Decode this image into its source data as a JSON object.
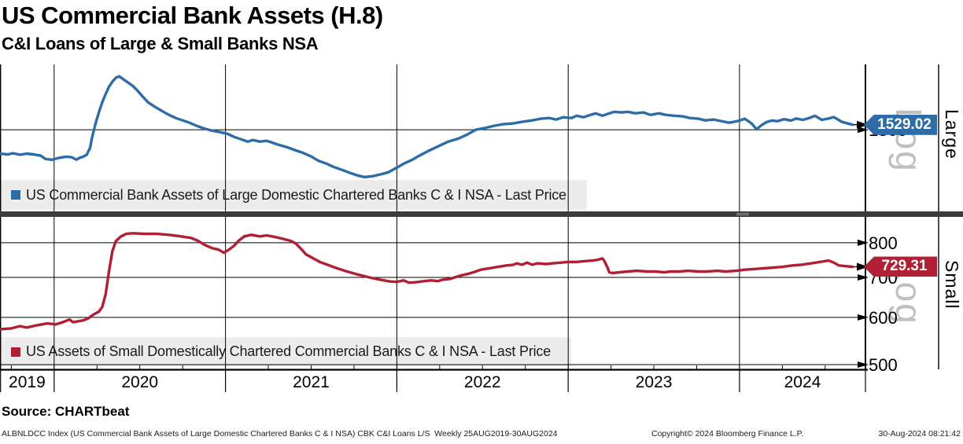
{
  "header": {
    "title": "US Commercial Bank Assets (H.8)",
    "subtitle": "C&I Loans of Large & Small Banks NSA"
  },
  "source_line": "Source: CHARTbeat",
  "footer": {
    "left": "ALBNLDCC Index (US Commercial Bank Assets of Large Domestic Chartered Banks C & I NSA) CBK C&I Loans L/S  Weekly 25AUG2019-30AUG2024",
    "center": "Copyright© 2024 Bloomberg Finance L.P.",
    "right": "30-Aug-2024 08:21:42"
  },
  "chart_data": {
    "type": "line",
    "title": "US Commercial Bank Assets (H.8)",
    "subtitle": "C&I Loans of Large & Small Banks NSA",
    "x_axis": {
      "xlim": [
        2019.684,
        2024.735
      ],
      "period": "Weekly 25AUG2019-30AUG2024",
      "year_values": [
        2019,
        2020,
        2021,
        2022,
        2023,
        2024
      ],
      "year_labels": [
        "2019",
        "2020",
        "2021",
        "2022",
        "2023",
        "2024"
      ],
      "grid_years": [
        2020,
        2021,
        2022,
        2023,
        2024
      ]
    },
    "panels": [
      {
        "name": "large",
        "side_label": "Large",
        "scale_label": "Log",
        "scale": "log",
        "ylim": [
          1095,
          1929
        ],
        "tick_values": [
          1500
        ],
        "tick_labels": [
          "1500"
        ],
        "color": "#2e6ca8",
        "legend": "US Commercial Bank Assets of Large Domestic Chartered Banks C & I NSA - Last Price",
        "last_price": "1529.02",
        "last_price_value": 1529.02,
        "series": [
          [
            2019.68,
            1368
          ],
          [
            2019.73,
            1364
          ],
          [
            2019.76,
            1370
          ],
          [
            2019.8,
            1362
          ],
          [
            2019.84,
            1368
          ],
          [
            2019.88,
            1364
          ],
          [
            2019.92,
            1358
          ],
          [
            2019.95,
            1340
          ],
          [
            2019.99,
            1336
          ],
          [
            2020.03,
            1346
          ],
          [
            2020.07,
            1352
          ],
          [
            2020.1,
            1350
          ],
          [
            2020.13,
            1337
          ],
          [
            2020.15,
            1346
          ],
          [
            2020.17,
            1352
          ],
          [
            2020.19,
            1362
          ],
          [
            2020.21,
            1400
          ],
          [
            2020.22,
            1450
          ],
          [
            2020.24,
            1530
          ],
          [
            2020.26,
            1600
          ],
          [
            2020.28,
            1665
          ],
          [
            2020.3,
            1720
          ],
          [
            2020.32,
            1770
          ],
          [
            2020.34,
            1805
          ],
          [
            2020.36,
            1832
          ],
          [
            2020.38,
            1843
          ],
          [
            2020.4,
            1825
          ],
          [
            2020.43,
            1800
          ],
          [
            2020.46,
            1775
          ],
          [
            2020.49,
            1740
          ],
          [
            2020.52,
            1700
          ],
          [
            2020.55,
            1665
          ],
          [
            2020.59,
            1637
          ],
          [
            2020.63,
            1612
          ],
          [
            2020.67,
            1588
          ],
          [
            2020.71,
            1569
          ],
          [
            2020.75,
            1555
          ],
          [
            2020.79,
            1541
          ],
          [
            2020.83,
            1523
          ],
          [
            2020.87,
            1509
          ],
          [
            2020.92,
            1495
          ],
          [
            2020.97,
            1486
          ],
          [
            2021.01,
            1477
          ],
          [
            2021.05,
            1459
          ],
          [
            2021.09,
            1446
          ],
          [
            2021.13,
            1433
          ],
          [
            2021.16,
            1442
          ],
          [
            2021.2,
            1433
          ],
          [
            2021.24,
            1437
          ],
          [
            2021.27,
            1428
          ],
          [
            2021.31,
            1415
          ],
          [
            2021.36,
            1402
          ],
          [
            2021.41,
            1385
          ],
          [
            2021.45,
            1373
          ],
          [
            2021.5,
            1353
          ],
          [
            2021.54,
            1332
          ],
          [
            2021.59,
            1316
          ],
          [
            2021.63,
            1300
          ],
          [
            2021.68,
            1285
          ],
          [
            2021.73,
            1269
          ],
          [
            2021.77,
            1258
          ],
          [
            2021.81,
            1250
          ],
          [
            2021.86,
            1254
          ],
          [
            2021.9,
            1262
          ],
          [
            2021.95,
            1273
          ],
          [
            2022.0,
            1296
          ],
          [
            2022.04,
            1316
          ],
          [
            2022.09,
            1336
          ],
          [
            2022.13,
            1357
          ],
          [
            2022.19,
            1385
          ],
          [
            2022.25,
            1411
          ],
          [
            2022.3,
            1433
          ],
          [
            2022.36,
            1450
          ],
          [
            2022.41,
            1472
          ],
          [
            2022.46,
            1500
          ],
          [
            2022.51,
            1509
          ],
          [
            2022.57,
            1523
          ],
          [
            2022.62,
            1532
          ],
          [
            2022.68,
            1537
          ],
          [
            2022.73,
            1546
          ],
          [
            2022.79,
            1555
          ],
          [
            2022.84,
            1565
          ],
          [
            2022.89,
            1569
          ],
          [
            2022.93,
            1560
          ],
          [
            2022.97,
            1574
          ],
          [
            2023.02,
            1569
          ],
          [
            2023.05,
            1583
          ],
          [
            2023.09,
            1574
          ],
          [
            2023.13,
            1588
          ],
          [
            2023.16,
            1598
          ],
          [
            2023.2,
            1583
          ],
          [
            2023.24,
            1598
          ],
          [
            2023.27,
            1607
          ],
          [
            2023.31,
            1603
          ],
          [
            2023.35,
            1607
          ],
          [
            2023.39,
            1598
          ],
          [
            2023.44,
            1603
          ],
          [
            2023.48,
            1588
          ],
          [
            2023.53,
            1598
          ],
          [
            2023.57,
            1588
          ],
          [
            2023.62,
            1583
          ],
          [
            2023.67,
            1579
          ],
          [
            2023.71,
            1569
          ],
          [
            2023.76,
            1565
          ],
          [
            2023.8,
            1555
          ],
          [
            2023.85,
            1560
          ],
          [
            2023.89,
            1551
          ],
          [
            2023.94,
            1541
          ],
          [
            2023.99,
            1551
          ],
          [
            2024.03,
            1565
          ],
          [
            2024.07,
            1537
          ],
          [
            2024.1,
            1502
          ],
          [
            2024.13,
            1528
          ],
          [
            2024.16,
            1546
          ],
          [
            2024.19,
            1554
          ],
          [
            2024.22,
            1550
          ],
          [
            2024.26,
            1562
          ],
          [
            2024.3,
            1554
          ],
          [
            2024.33,
            1566
          ],
          [
            2024.37,
            1558
          ],
          [
            2024.41,
            1570
          ],
          [
            2024.44,
            1583
          ],
          [
            2024.48,
            1558
          ],
          [
            2024.52,
            1566
          ],
          [
            2024.55,
            1575
          ],
          [
            2024.6,
            1545
          ],
          [
            2024.66,
            1529.02
          ]
        ]
      },
      {
        "name": "small",
        "side_label": "Small",
        "scale_label": "Log",
        "scale": "log",
        "ylim": [
          491,
          884
        ],
        "tick_values": [
          800,
          700,
          600,
          500
        ],
        "tick_labels": [
          "800",
          "700",
          "600",
          "500"
        ],
        "color": "#b01f33",
        "legend": "US Assets of Small Domestically Chartered Commercial Banks C & I NSA - Last Price",
        "last_price": "729.31",
        "last_price_value": 729.31,
        "series": [
          [
            2019.68,
            573
          ],
          [
            2019.75,
            575
          ],
          [
            2019.8,
            580
          ],
          [
            2019.84,
            577
          ],
          [
            2019.9,
            582
          ],
          [
            2019.96,
            586
          ],
          [
            2020.01,
            584
          ],
          [
            2020.05,
            589
          ],
          [
            2020.09,
            595
          ],
          [
            2020.11,
            589
          ],
          [
            2020.14,
            591
          ],
          [
            2020.17,
            593
          ],
          [
            2020.2,
            598
          ],
          [
            2020.22,
            604
          ],
          [
            2020.24,
            609
          ],
          [
            2020.26,
            613
          ],
          [
            2020.28,
            624
          ],
          [
            2020.3,
            655
          ],
          [
            2020.32,
            716
          ],
          [
            2020.34,
            775
          ],
          [
            2020.36,
            805
          ],
          [
            2020.39,
            820
          ],
          [
            2020.42,
            828
          ],
          [
            2020.46,
            830
          ],
          [
            2020.53,
            828
          ],
          [
            2020.6,
            828
          ],
          [
            2020.67,
            825
          ],
          [
            2020.74,
            820
          ],
          [
            2020.8,
            815
          ],
          [
            2020.84,
            806
          ],
          [
            2020.88,
            793
          ],
          [
            2020.92,
            784
          ],
          [
            2020.96,
            779
          ],
          [
            2020.99,
            770
          ],
          [
            2021.02,
            779
          ],
          [
            2021.05,
            791
          ],
          [
            2021.08,
            808
          ],
          [
            2021.11,
            820
          ],
          [
            2021.15,
            825
          ],
          [
            2021.2,
            820
          ],
          [
            2021.24,
            823
          ],
          [
            2021.29,
            818
          ],
          [
            2021.33,
            813
          ],
          [
            2021.38,
            806
          ],
          [
            2021.41,
            798
          ],
          [
            2021.44,
            782
          ],
          [
            2021.47,
            765
          ],
          [
            2021.51,
            754
          ],
          [
            2021.55,
            743
          ],
          [
            2021.6,
            734
          ],
          [
            2021.65,
            725
          ],
          [
            2021.71,
            716
          ],
          [
            2021.77,
            708
          ],
          [
            2021.84,
            700
          ],
          [
            2021.9,
            694
          ],
          [
            2021.96,
            689
          ],
          [
            2022.0,
            688
          ],
          [
            2022.04,
            692
          ],
          [
            2022.07,
            686
          ],
          [
            2022.11,
            687
          ],
          [
            2022.16,
            690
          ],
          [
            2022.2,
            692
          ],
          [
            2022.24,
            690
          ],
          [
            2022.27,
            694
          ],
          [
            2022.31,
            696
          ],
          [
            2022.35,
            702
          ],
          [
            2022.38,
            706
          ],
          [
            2022.42,
            710
          ],
          [
            2022.46,
            716
          ],
          [
            2022.49,
            721
          ],
          [
            2022.54,
            725
          ],
          [
            2022.59,
            729
          ],
          [
            2022.64,
            733
          ],
          [
            2022.68,
            735
          ],
          [
            2022.7,
            739
          ],
          [
            2022.73,
            735
          ],
          [
            2022.76,
            741
          ],
          [
            2022.79,
            735
          ],
          [
            2022.82,
            739
          ],
          [
            2022.87,
            737
          ],
          [
            2022.91,
            739
          ],
          [
            2022.96,
            741
          ],
          [
            2023.0,
            743
          ],
          [
            2023.05,
            743
          ],
          [
            2023.09,
            745
          ],
          [
            2023.14,
            747
          ],
          [
            2023.17,
            749
          ],
          [
            2023.2,
            753
          ],
          [
            2023.21,
            747
          ],
          [
            2023.23,
            727
          ],
          [
            2023.24,
            714
          ],
          [
            2023.26,
            712
          ],
          [
            2023.3,
            714
          ],
          [
            2023.35,
            716
          ],
          [
            2023.4,
            718
          ],
          [
            2023.46,
            716
          ],
          [
            2023.51,
            716
          ],
          [
            2023.56,
            714
          ],
          [
            2023.6,
            716
          ],
          [
            2023.65,
            716
          ],
          [
            2023.7,
            718
          ],
          [
            2023.76,
            716
          ],
          [
            2023.81,
            716
          ],
          [
            2023.87,
            718
          ],
          [
            2023.92,
            716
          ],
          [
            2023.98,
            718
          ],
          [
            2024.03,
            721
          ],
          [
            2024.09,
            723
          ],
          [
            2024.14,
            725
          ],
          [
            2024.2,
            727
          ],
          [
            2024.25,
            729
          ],
          [
            2024.31,
            733
          ],
          [
            2024.36,
            735
          ],
          [
            2024.42,
            739
          ],
          [
            2024.47,
            743
          ],
          [
            2024.52,
            747
          ],
          [
            2024.55,
            741
          ],
          [
            2024.58,
            733
          ],
          [
            2024.62,
            731
          ],
          [
            2024.66,
            729.31
          ]
        ]
      }
    ]
  }
}
